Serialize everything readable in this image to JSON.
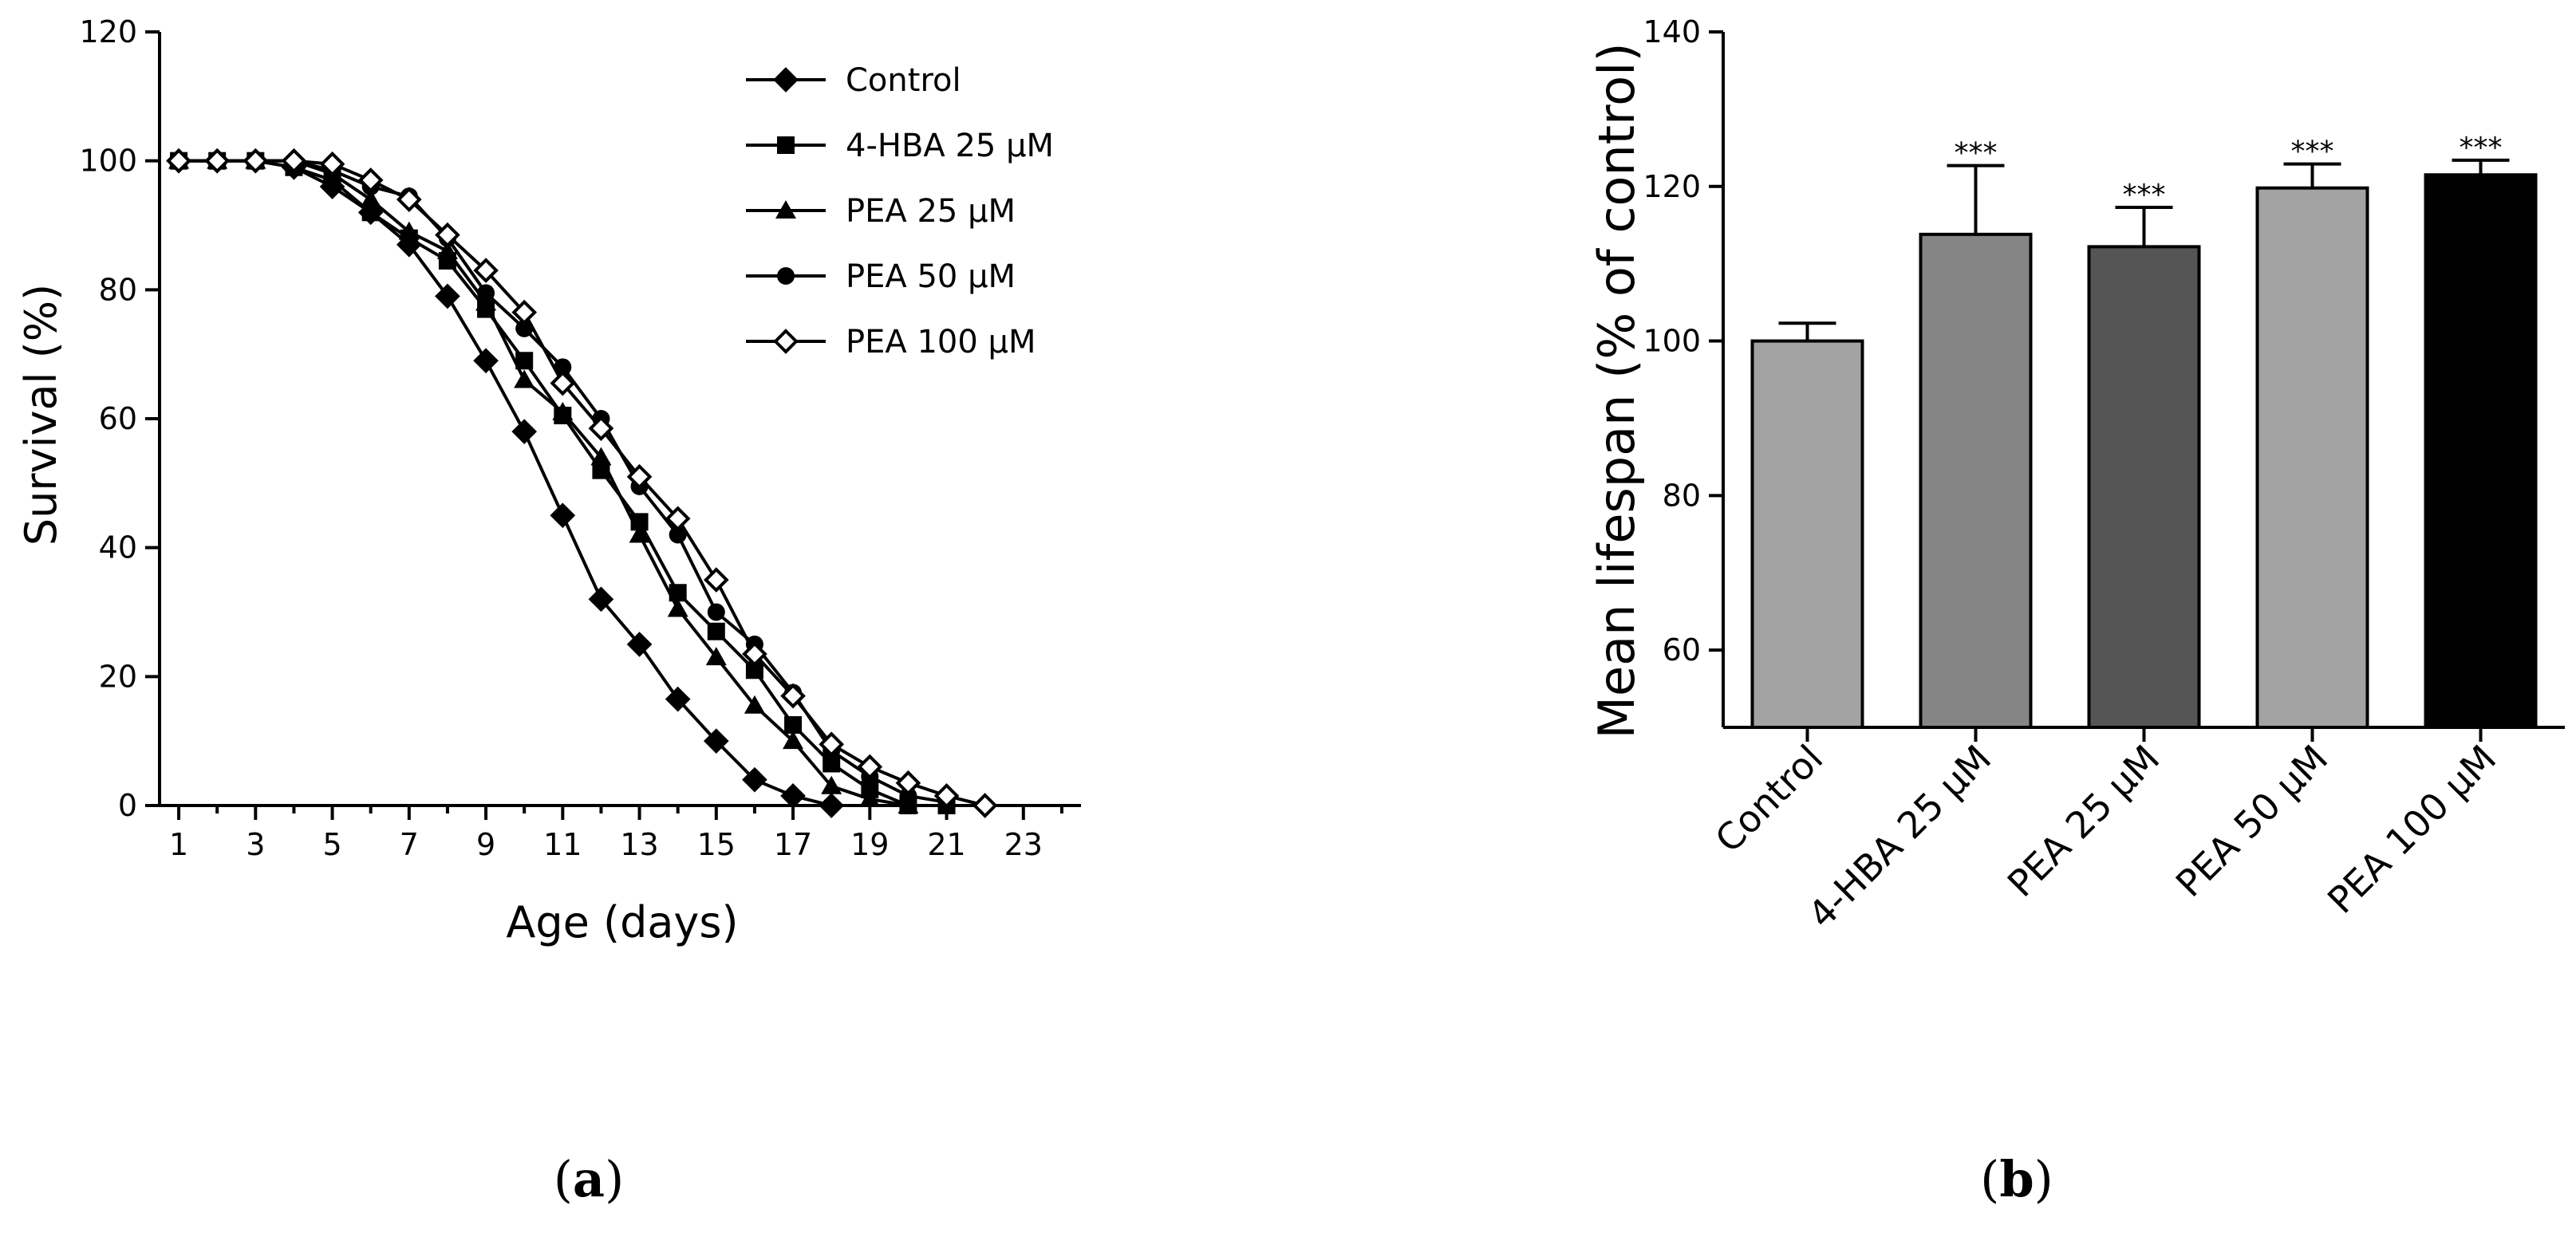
{
  "chart_data": [
    {
      "type": "line",
      "panel_label": "a",
      "panel_label_open": "(",
      "panel_label_close": ")",
      "xlabel": "Age (days)",
      "ylabel": "Survival (%)",
      "xlim": [
        0.5,
        24.5
      ],
      "ylim": [
        0,
        120
      ],
      "xticks": [
        1,
        3,
        5,
        7,
        9,
        11,
        13,
        15,
        17,
        19,
        21,
        23
      ],
      "yticks": [
        0,
        20,
        40,
        60,
        80,
        100,
        120
      ],
      "legend_position": "top-right",
      "series": [
        {
          "name": "Control",
          "marker": "diamond-filled",
          "x": [
            1,
            2,
            3,
            4,
            5,
            6,
            7,
            8,
            9,
            10,
            11,
            12,
            13,
            14,
            15,
            16,
            17,
            18
          ],
          "values": [
            100,
            100,
            100,
            99,
            96,
            92,
            87,
            79,
            69,
            58,
            45,
            32,
            25,
            16.5,
            10,
            4,
            1.5,
            0
          ]
        },
        {
          "name": "4-HBA 25 µM",
          "marker": "square-filled",
          "x": [
            1,
            2,
            3,
            4,
            5,
            6,
            7,
            8,
            9,
            10,
            11,
            12,
            13,
            14,
            15,
            16,
            17,
            18,
            19,
            20,
            21
          ],
          "values": [
            100,
            100,
            100,
            99,
            97,
            92,
            88,
            84.5,
            77,
            69,
            60.5,
            52,
            44,
            33,
            27,
            21,
            12.5,
            6.5,
            2.5,
            0,
            0
          ]
        },
        {
          "name": "PEA 25 µM",
          "marker": "triangle-filled",
          "x": [
            1,
            2,
            3,
            4,
            5,
            6,
            7,
            8,
            9,
            10,
            11,
            12,
            13,
            14,
            15,
            16,
            17,
            18,
            19,
            20
          ],
          "values": [
            100,
            100,
            100,
            100,
            98,
            94,
            89,
            86,
            78,
            66,
            61,
            54,
            42,
            30.5,
            23,
            15.5,
            10,
            3,
            1,
            0
          ]
        },
        {
          "name": "PEA 50 µM",
          "marker": "circle-filled",
          "x": [
            1,
            2,
            3,
            4,
            5,
            6,
            7,
            8,
            9,
            10,
            11,
            12,
            13,
            14,
            15,
            16,
            17,
            18,
            19,
            20,
            21
          ],
          "values": [
            100,
            100,
            100,
            100,
            98.5,
            96,
            94.5,
            88,
            79.5,
            74,
            68,
            60,
            49.5,
            42,
            30,
            25,
            17.5,
            8.5,
            4.5,
            1.5,
            0.5
          ]
        },
        {
          "name": "PEA 100 µM",
          "marker": "diamond-open",
          "x": [
            1,
            2,
            3,
            4,
            5,
            6,
            7,
            8,
            9,
            10,
            11,
            12,
            13,
            14,
            15,
            16,
            17,
            18,
            19,
            20,
            21,
            22
          ],
          "values": [
            100,
            100,
            100,
            100,
            99.5,
            97,
            94,
            88.5,
            83,
            76.5,
            65.5,
            58.5,
            51,
            44.5,
            35,
            23.5,
            17,
            9.5,
            6,
            3.5,
            1.5,
            0
          ]
        }
      ]
    },
    {
      "type": "bar",
      "panel_label": "b",
      "panel_label_open": "(",
      "panel_label_close": ")",
      "xlabel": "",
      "ylabel": "Mean lifespan (% of control)",
      "ylim": [
        50,
        140
      ],
      "yticks": [
        60,
        80,
        100,
        120,
        140
      ],
      "categories": [
        "Control",
        "4-HBA 25 µM",
        "PEA 25 µM",
        "PEA 50 µM",
        "PEA 100 µM"
      ],
      "values": [
        100,
        113.8,
        112.2,
        119.8,
        121.5
      ],
      "errors": [
        2.3,
        8.9,
        5.1,
        3.1,
        1.9
      ],
      "significance": [
        "",
        "***",
        "***",
        "***",
        "***"
      ],
      "colors": [
        "#a3a3a3",
        "#858585",
        "#555555",
        "#a3a3a3",
        "#000000"
      ]
    }
  ]
}
